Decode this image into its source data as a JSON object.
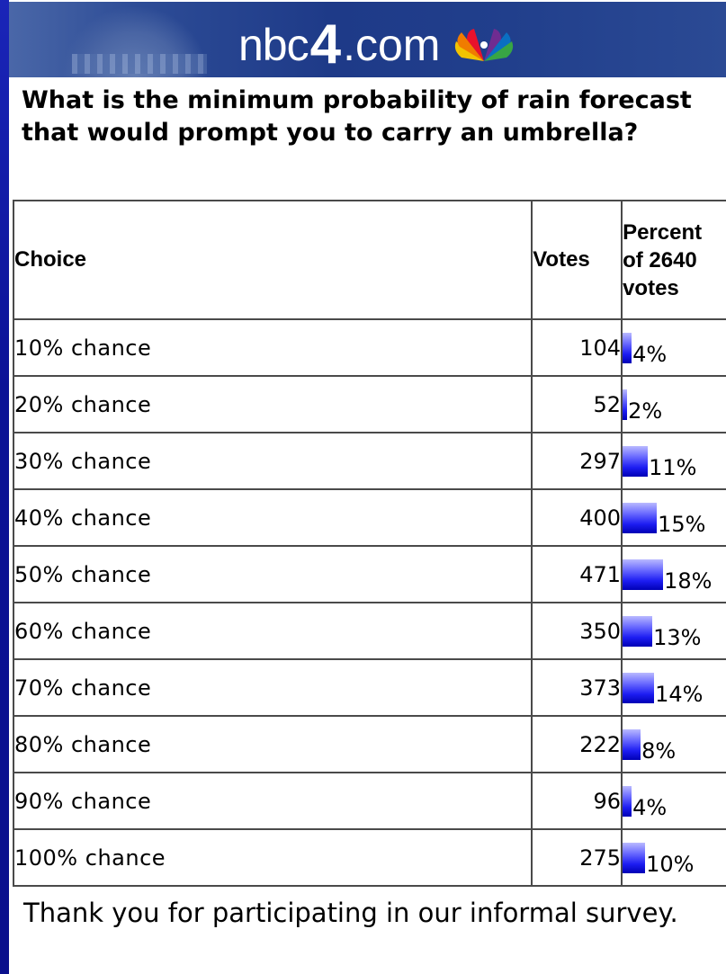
{
  "banner": {
    "brand_prefix": "nbc",
    "brand_number": "4",
    "brand_suffix": ".com"
  },
  "poll": {
    "question": "What is the minimum probability of rain forecast that would prompt you to carry an umbrella?",
    "headers": {
      "choice": "Choice",
      "votes": "Votes",
      "percent_line1": "Percent",
      "percent_line2": "of 2640",
      "percent_line3": "votes"
    },
    "rows": [
      {
        "choice": "10% chance",
        "votes": "104",
        "percent": "4%",
        "percent_value": 4
      },
      {
        "choice": "20% chance",
        "votes": "52",
        "percent": "2%",
        "percent_value": 2
      },
      {
        "choice": "30% chance",
        "votes": "297",
        "percent": "11%",
        "percent_value": 11
      },
      {
        "choice": "40% chance",
        "votes": "400",
        "percent": "15%",
        "percent_value": 15
      },
      {
        "choice": "50% chance",
        "votes": "471",
        "percent": "18%",
        "percent_value": 18
      },
      {
        "choice": "60% chance",
        "votes": "350",
        "percent": "13%",
        "percent_value": 13
      },
      {
        "choice": "70% chance",
        "votes": "373",
        "percent": "14%",
        "percent_value": 14
      },
      {
        "choice": "80% chance",
        "votes": "222",
        "percent": "8%",
        "percent_value": 8
      },
      {
        "choice": "90% chance",
        "votes": "96",
        "percent": "4%",
        "percent_value": 4
      },
      {
        "choice": "100% chance",
        "votes": "275",
        "percent": "10%",
        "percent_value": 10
      }
    ]
  },
  "footer": {
    "thanks": "Thank you for participating in our informal survey."
  },
  "colors": {
    "frame": "#0a0f8c",
    "bar_dark": "#0000b5",
    "bar_light": "#b9b9ff"
  }
}
